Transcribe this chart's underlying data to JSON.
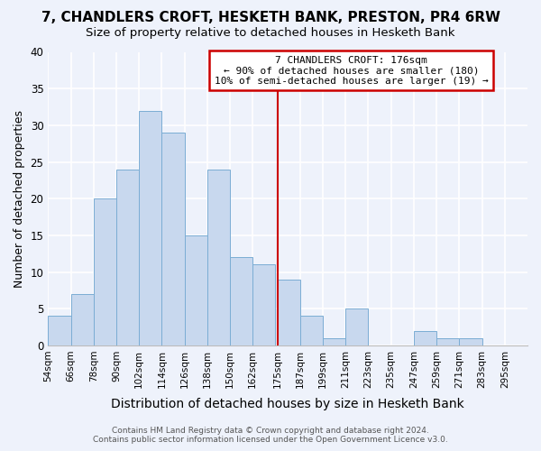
{
  "title": "7, CHANDLERS CROFT, HESKETH BANK, PRESTON, PR4 6RW",
  "subtitle": "Size of property relative to detached houses in Hesketh Bank",
  "xlabel": "Distribution of detached houses by size in Hesketh Bank",
  "ylabel": "Number of detached properties",
  "bar_color": "#c8d8ee",
  "bar_edge_color": "#7badd4",
  "background_color": "#eef2fb",
  "grid_color": "#ffffff",
  "bins": [
    54,
    66,
    78,
    90,
    102,
    114,
    126,
    138,
    150,
    162,
    175,
    187,
    199,
    211,
    223,
    235,
    247,
    259,
    271,
    283,
    295
  ],
  "values": [
    4,
    7,
    20,
    24,
    32,
    29,
    15,
    24,
    12,
    11,
    9,
    4,
    1,
    5,
    0,
    0,
    2,
    1,
    1,
    0
  ],
  "tick_labels": [
    "54sqm",
    "66sqm",
    "78sqm",
    "90sqm",
    "102sqm",
    "114sqm",
    "126sqm",
    "138sqm",
    "150sqm",
    "162sqm",
    "175sqm",
    "187sqm",
    "199sqm",
    "211sqm",
    "223sqm",
    "235sqm",
    "247sqm",
    "259sqm",
    "271sqm",
    "283sqm",
    "295sqm"
  ],
  "vline_x": 175,
  "vline_color": "#cc0000",
  "annotation_text": "7 CHANDLERS CROFT: 176sqm\n← 90% of detached houses are smaller (180)\n10% of semi-detached houses are larger (19) →",
  "annotation_box_color": "#ffffff",
  "annotation_box_edge": "#cc0000",
  "ylim": [
    0,
    40
  ],
  "yticks": [
    0,
    5,
    10,
    15,
    20,
    25,
    30,
    35,
    40
  ],
  "title_fontsize": 11,
  "subtitle_fontsize": 9.5,
  "xlabel_fontsize": 10,
  "ylabel_fontsize": 9,
  "footer_line1": "Contains HM Land Registry data © Crown copyright and database right 2024.",
  "footer_line2": "Contains public sector information licensed under the Open Government Licence v3.0."
}
